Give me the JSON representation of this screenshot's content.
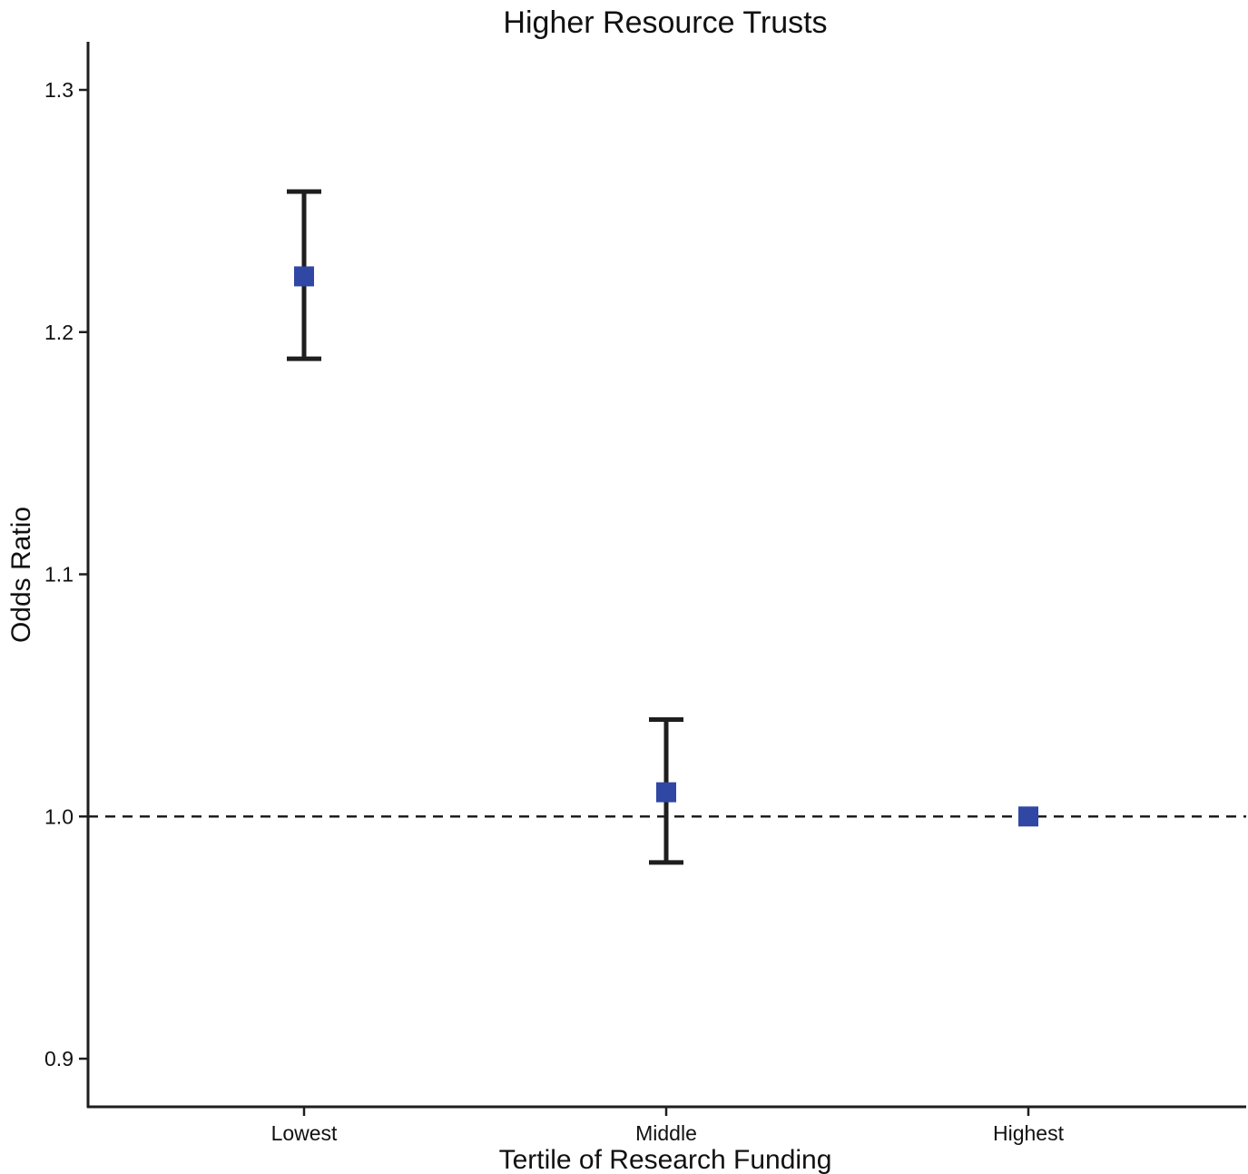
{
  "chart_data": {
    "type": "scatter",
    "title": "Higher Resource Trusts",
    "xlabel": "Tertile of Research Funding",
    "ylabel": "Odds Ratio",
    "categories": [
      "Lowest",
      "Middle",
      "Highest"
    ],
    "series": [
      {
        "values": [
          1.223,
          1.01,
          1.0
        ],
        "ci_lower": [
          1.189,
          0.981,
          null
        ],
        "ci_upper": [
          1.258,
          1.04,
          null
        ]
      }
    ],
    "reference_line": {
      "y": 1.0,
      "style": "dashed"
    },
    "ylim": [
      0.88,
      1.32
    ],
    "yticks": [
      0.9,
      1.0,
      1.1,
      1.2,
      1.3
    ],
    "ytick_labels": [
      "0.9",
      "1.0",
      "1.1",
      "1.2",
      "1.3"
    ],
    "grid": false,
    "colors": {
      "marker": "#3047a3",
      "errorbar": "#1e1e1e",
      "axis": "#1e1e1e",
      "reference_line": "#1e1e1e"
    }
  }
}
